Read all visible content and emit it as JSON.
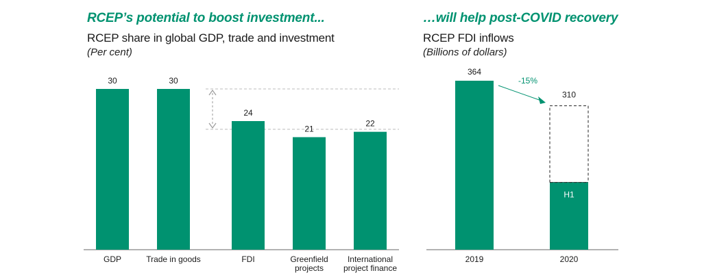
{
  "colors": {
    "bar": "#009270",
    "accent": "#009270",
    "axis": "#666666",
    "guide": "#bbbbbb",
    "text": "#1a1a1a"
  },
  "left_panel": {
    "headline": "RCEP’s potential to boost investment...",
    "subtitle": "RCEP share in global GDP, trade and investment",
    "units": "(Per cent)"
  },
  "right_panel": {
    "headline": "…will help post-COVID recovery",
    "subtitle": "RCEP FDI inflows",
    "units": "(Billions of dollars)"
  },
  "chart_data": [
    {
      "type": "bar",
      "title": "RCEP share in global GDP, trade and investment",
      "subtitle": "(Per cent)",
      "categories": [
        "GDP",
        "Trade in goods",
        "FDI",
        "Greenfield projects",
        "International project finance"
      ],
      "category_lines": [
        [
          "GDP"
        ],
        [
          "Trade in goods"
        ],
        [
          "FDI"
        ],
        [
          "Greenfield",
          "projects"
        ],
        [
          "International",
          "project finance"
        ]
      ],
      "values": [
        30,
        30,
        24,
        21,
        22
      ],
      "data_labels": [
        "30",
        "30",
        "24",
        "21",
        "22"
      ],
      "ylim": [
        0,
        30
      ],
      "annotations": [
        "gap between trade share (30) and investment shares (~24) shown by dashed reference lines and a double-headed arrow"
      ]
    },
    {
      "type": "bar",
      "title": "RCEP FDI inflows",
      "subtitle": "(Billions of dollars)",
      "categories": [
        "2019",
        "2020"
      ],
      "values": [
        364,
        310
      ],
      "data_labels": [
        "364",
        "310"
      ],
      "segments_2020": {
        "h1_label": "H1",
        "h1_value": 145,
        "full_year_value": 310,
        "full_year_style": "dashed outline"
      },
      "change_label": "-15%",
      "ylim": [
        0,
        364
      ]
    }
  ]
}
